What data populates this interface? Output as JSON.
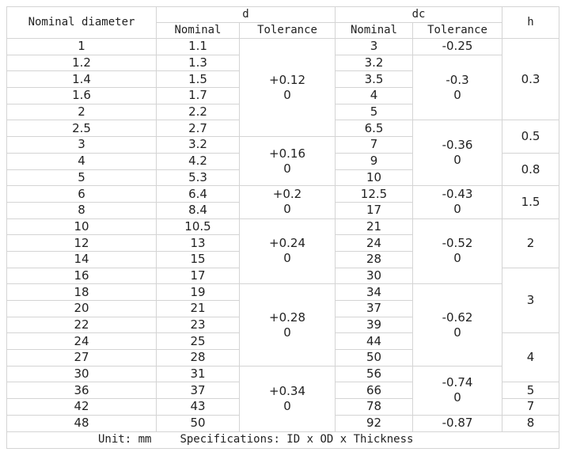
{
  "table": {
    "header": {
      "nominal_diameter": "Nominal diameter",
      "d": "d",
      "dc": "dc",
      "h": "h",
      "d_nominal": "Nominal",
      "d_tolerance": "Tolerance",
      "dc_nominal": "Nominal",
      "dc_tolerance": "Tolerance"
    },
    "rows": [
      [
        "1",
        "1.1",
        "3"
      ],
      [
        "1.2",
        "1.3",
        "3.2"
      ],
      [
        "1.4",
        "1.5",
        "3.5"
      ],
      [
        "1.6",
        "1.7",
        "4"
      ],
      [
        "2",
        "2.2",
        "5"
      ],
      [
        "2.5",
        "2.7",
        "6.5"
      ],
      [
        "3",
        "3.2",
        "7"
      ],
      [
        "4",
        "4.2",
        "9"
      ],
      [
        "5",
        "5.3",
        "10"
      ],
      [
        "6",
        "6.4",
        "12.5"
      ],
      [
        "8",
        "8.4",
        "17"
      ],
      [
        "10",
        "10.5",
        "21"
      ],
      [
        "12",
        "13",
        "24"
      ],
      [
        "14",
        "15",
        "28"
      ],
      [
        "16",
        "17",
        "30"
      ],
      [
        "18",
        "19",
        "34"
      ],
      [
        "20",
        "21",
        "37"
      ],
      [
        "22",
        "23",
        "39"
      ],
      [
        "24",
        "25",
        "44"
      ],
      [
        "27",
        "28",
        "50"
      ],
      [
        "30",
        "31",
        "56"
      ],
      [
        "36",
        "37",
        "66"
      ],
      [
        "42",
        "43",
        "78"
      ],
      [
        "48",
        "50",
        "92"
      ]
    ],
    "d_tolerance": [
      [
        "+0.12",
        "0"
      ],
      [
        "+0.16",
        "0"
      ],
      [
        "+0.2",
        "0"
      ],
      [
        "+0.24",
        "0"
      ],
      [
        "+0.28",
        "0"
      ],
      [
        "+0.34",
        "0"
      ]
    ],
    "dc_tolerance": [
      [
        "-0.25"
      ],
      [
        "-0.3",
        "0"
      ],
      [
        "-0.36",
        "0"
      ],
      [
        "-0.43",
        "0"
      ],
      [
        "-0.52",
        "0"
      ],
      [
        "-0.62",
        "0"
      ],
      [
        "-0.74",
        "0"
      ],
      [
        "-0.87"
      ]
    ],
    "h": [
      "0.3",
      "0.5",
      "0.8",
      "1.5",
      "2",
      "3",
      "4",
      "5",
      "7",
      "8"
    ],
    "footer": {
      "unit": "Unit: mm",
      "specifications": "Specifications: ID x OD x Thickness"
    }
  }
}
